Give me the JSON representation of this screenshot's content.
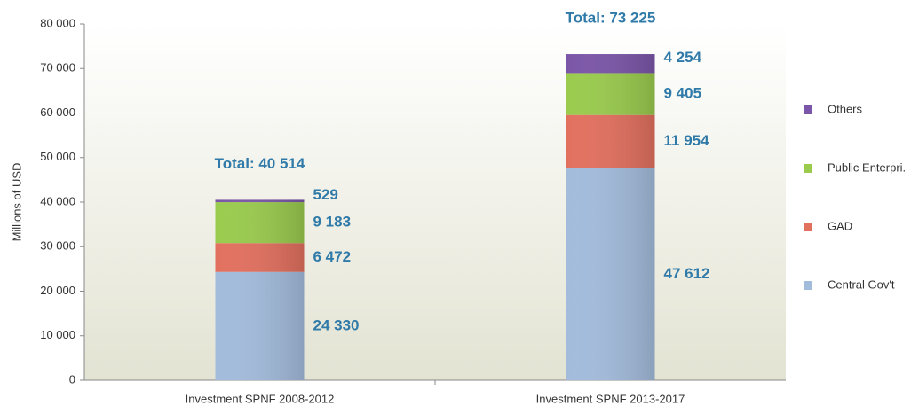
{
  "chart_data": {
    "type": "stacked_bar",
    "ylabel": "Millions of USD",
    "categories": [
      "Investment SPNF 2008-2012",
      "Investment SPNF 2013-2017"
    ],
    "series": [
      {
        "name": "Central Gov't",
        "color": "#a3bcdc",
        "values": [
          24330,
          47612
        ],
        "value_labels": [
          "24 330",
          "47 612"
        ]
      },
      {
        "name": "GAD",
        "color": "#e2705f",
        "values": [
          6472,
          11954
        ],
        "value_labels": [
          "6 472",
          "11 954"
        ]
      },
      {
        "name": "Public Enterpri.",
        "color": "#9acb4e",
        "values": [
          9183,
          9405
        ],
        "value_labels": [
          "9 183",
          "9 405"
        ]
      },
      {
        "name": "Others",
        "color": "#7b56a8",
        "values": [
          529,
          4254
        ],
        "value_labels": [
          "529",
          "4 254"
        ]
      }
    ],
    "totals": {
      "values": [
        40514,
        73225
      ],
      "value_labels": [
        "Total: 40 514",
        "Total: 73 225"
      ]
    },
    "ylim": [
      0,
      80000
    ],
    "yticks": [
      0,
      {
        "value": 10000,
        "label": "10 000"
      },
      {
        "value": 20000,
        "label": "20 000"
      },
      {
        "value": 30000,
        "label": "30 000"
      },
      {
        "value": 40000,
        "label": "40 000"
      },
      {
        "value": 50000,
        "label": "50 000"
      },
      {
        "value": 60000,
        "label": "60 000"
      },
      {
        "value": 70000,
        "label": "70 000"
      },
      {
        "value": 80000,
        "label": "80 000"
      }
    ],
    "legend": "right"
  }
}
